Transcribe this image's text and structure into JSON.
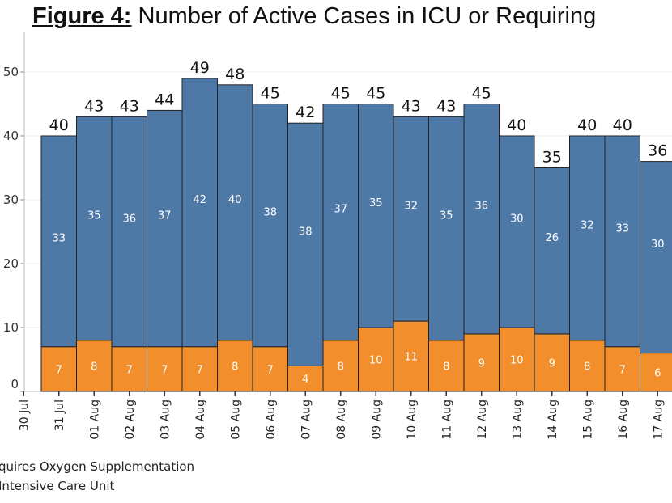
{
  "title": {
    "prefix": "Figure 4:",
    "text": " Number of Active Cases in ICU or Requiring"
  },
  "chart_data": {
    "type": "bar",
    "stacked": true,
    "categories": [
      "30 Jul",
      "31 Jul",
      "01 Aug",
      "02 Aug",
      "03 Aug",
      "04 Aug",
      "05 Aug",
      "06 Aug",
      "07 Aug",
      "08 Aug",
      "09 Aug",
      "10 Aug",
      "11 Aug",
      "12 Aug",
      "13 Aug",
      "14 Aug",
      "15 Aug",
      "16 Aug",
      "17 Aug"
    ],
    "series": [
      {
        "name": "Intensive Care Unit",
        "color": "#f28e2b",
        "values": [
          null,
          7,
          8,
          7,
          7,
          7,
          8,
          7,
          4,
          8,
          10,
          11,
          8,
          9,
          10,
          9,
          8,
          7,
          6
        ]
      },
      {
        "name": "Requires Oxygen Supplementation",
        "color": "#4e79a7",
        "values": [
          null,
          33,
          35,
          36,
          37,
          42,
          40,
          38,
          38,
          37,
          35,
          32,
          35,
          36,
          30,
          26,
          32,
          33,
          30
        ]
      }
    ],
    "totals": [
      null,
      40,
      43,
      43,
      44,
      49,
      48,
      45,
      42,
      45,
      45,
      43,
      43,
      45,
      40,
      35,
      40,
      40,
      36
    ],
    "yticks": [
      0,
      10,
      20,
      30,
      40,
      50
    ],
    "ylim": [
      0,
      55
    ],
    "grid": true,
    "legend": {
      "position": "bottom-left",
      "entries": [
        "quires Oxygen Supplementation",
        "Intensive Care Unit"
      ]
    }
  }
}
